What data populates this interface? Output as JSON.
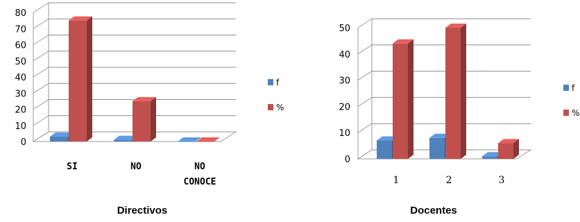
{
  "chart_data": [
    {
      "type": "bar",
      "title": "Directivos",
      "categories": [
        "SI",
        "NO",
        "NO\nCONOCE"
      ],
      "series": [
        {
          "name": "f",
          "values": [
            3,
            1,
            0
          ],
          "color": "#4f81bd"
        },
        {
          "name": "%",
          "values": [
            75,
            25,
            0
          ],
          "color": "#c0504d"
        }
      ],
      "ylim": [
        0,
        80
      ],
      "yticks": [
        0,
        10,
        20,
        30,
        40,
        50,
        60,
        70,
        80
      ],
      "xlabel": "",
      "ylabel": "",
      "grid": true,
      "legend": "right",
      "style": "3d-column"
    },
    {
      "type": "bar",
      "title": "Docentes",
      "categories": [
        "1",
        "2",
        "3"
      ],
      "series": [
        {
          "name": "f",
          "values": [
            7,
            8,
            1
          ],
          "color": "#4f81bd"
        },
        {
          "name": "%",
          "values": [
            44,
            50,
            6
          ],
          "color": "#c0504d"
        }
      ],
      "ylim": [
        0,
        50
      ],
      "yticks": [
        0,
        10,
        20,
        30,
        40,
        50
      ],
      "xlabel": "",
      "ylabel": "",
      "grid": true,
      "legend": "right",
      "style": "3d-column"
    }
  ]
}
